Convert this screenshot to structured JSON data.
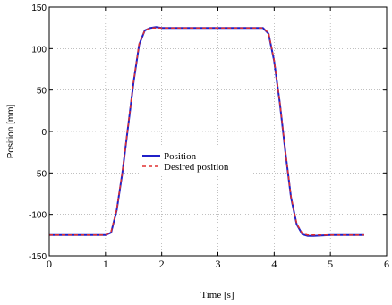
{
  "chart_data": {
    "type": "line",
    "title": "",
    "xlabel": "Time [s]",
    "ylabel": "Position [mm]",
    "xlim": [
      0,
      6
    ],
    "ylim": [
      -150,
      150
    ],
    "xticks": [
      "0",
      "1",
      "2",
      "3",
      "4",
      "5",
      "6"
    ],
    "yticks": [
      "150",
      "100",
      "50",
      "0",
      "-50",
      "-100",
      "-150"
    ],
    "grid": true,
    "legend_position": "center-left",
    "series": [
      {
        "name": "Position",
        "color": "#2020c8",
        "style": "solid",
        "x": [
          0,
          1.0,
          1.1,
          1.2,
          1.3,
          1.4,
          1.5,
          1.6,
          1.7,
          1.8,
          1.9,
          2.0,
          3.0,
          3.8,
          3.9,
          4.0,
          4.1,
          4.2,
          4.3,
          4.4,
          4.5,
          4.6,
          4.7,
          5.0,
          5.6
        ],
        "y": [
          -125,
          -125,
          -122,
          -95,
          -50,
          5,
          60,
          105,
          122,
          125,
          126,
          125,
          125,
          125,
          118,
          85,
          35,
          -25,
          -80,
          -112,
          -124,
          -126,
          -126,
          -125,
          -125
        ]
      },
      {
        "name": "Desired position",
        "color": "#e03030",
        "style": "dashed",
        "x": [
          0,
          1.0,
          1.1,
          1.2,
          1.3,
          1.4,
          1.5,
          1.6,
          1.7,
          1.8,
          1.9,
          2.0,
          3.0,
          3.8,
          3.9,
          4.0,
          4.1,
          4.2,
          4.3,
          4.4,
          4.5,
          4.6,
          4.7,
          5.0,
          5.6
        ],
        "y": [
          -125,
          -125,
          -121,
          -94,
          -49,
          6,
          61,
          106,
          122,
          125,
          125,
          125,
          125,
          125,
          119,
          86,
          36,
          -24,
          -79,
          -111,
          -123,
          -125,
          -125,
          -125,
          -125
        ]
      }
    ]
  }
}
